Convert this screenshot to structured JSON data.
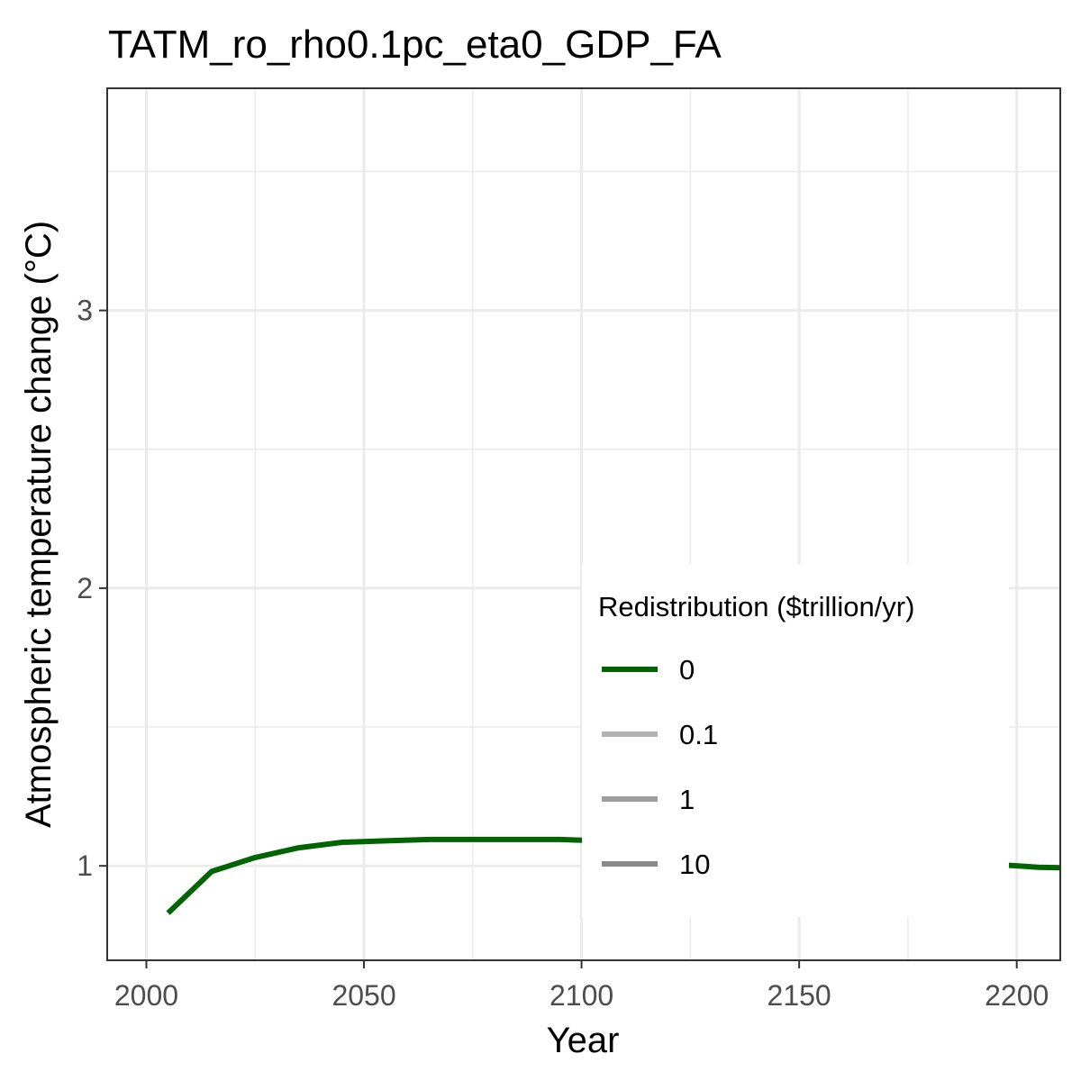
{
  "chart_data": {
    "type": "line",
    "title": "TATM_ro_rho0.1pc_eta0_GDP_FA",
    "xlabel": "Year",
    "ylabel": "Atmospheric temperature change (°C)",
    "xlim": [
      1991,
      2210
    ],
    "ylim": [
      0.66,
      3.8
    ],
    "x_ticks": [
      2000,
      2050,
      2100,
      2150,
      2200
    ],
    "x_tick_labels": [
      "2000",
      "2050",
      "2100",
      "2150",
      "2200"
    ],
    "y_ticks": [
      1,
      2,
      3
    ],
    "y_tick_labels": [
      "1",
      "2",
      "3"
    ],
    "grid": true,
    "legend": {
      "title": "Redistribution ($trillion/yr)",
      "placement": "bottom-right inside",
      "entries": [
        {
          "label": "0",
          "color": "#006400"
        },
        {
          "label": "0.1",
          "color": "#b3b3b3"
        },
        {
          "label": "1",
          "color": "#9e9e9e"
        },
        {
          "label": "10",
          "color": "#8a8a8a"
        }
      ]
    },
    "series": [
      {
        "name": "0",
        "color": "#006400",
        "segments": [
          {
            "x": [
              2005,
              2015,
              2025,
              2035,
              2045,
              2055,
              2065,
              2075,
              2085,
              2095,
              2105,
              2115,
              2125,
              2135,
              2145,
              2155,
              2165,
              2175,
              2185,
              2195,
              2205,
              2210
            ],
            "y": [
              0.83,
              0.98,
              1.03,
              1.065,
              1.085,
              1.09,
              1.095,
              1.095,
              1.095,
              1.095,
              1.09,
              1.085,
              1.075,
              1.065,
              1.055,
              1.045,
              1.035,
              1.025,
              1.015,
              1.005,
              0.995,
              0.993
            ]
          }
        ]
      }
    ]
  }
}
